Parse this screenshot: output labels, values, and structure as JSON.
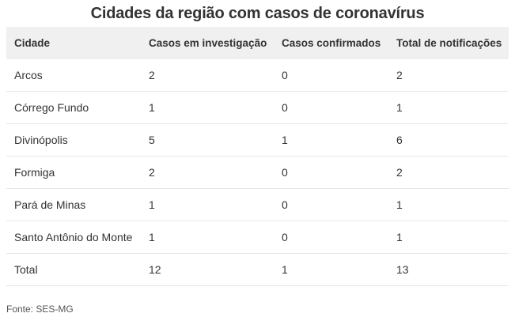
{
  "title": "Cidades da região com casos de coronavírus",
  "table": {
    "headers": [
      "Cidade",
      "Casos em investigação",
      "Casos confirmados",
      "Total de notificações"
    ],
    "rows": [
      [
        "Arcos",
        "2",
        "0",
        "2"
      ],
      [
        "Córrego Fundo",
        "1",
        "0",
        "1"
      ],
      [
        "Divinópolis",
        "5",
        "1",
        "6"
      ],
      [
        "Formiga",
        "2",
        "0",
        "2"
      ],
      [
        "Pará de Minas",
        "1",
        "0",
        "1"
      ],
      [
        "Santo Antônio do Monte",
        "1",
        "0",
        "1"
      ],
      [
        "Total",
        "12",
        "1",
        "13"
      ]
    ]
  },
  "source": "Fonte: SES-MG"
}
